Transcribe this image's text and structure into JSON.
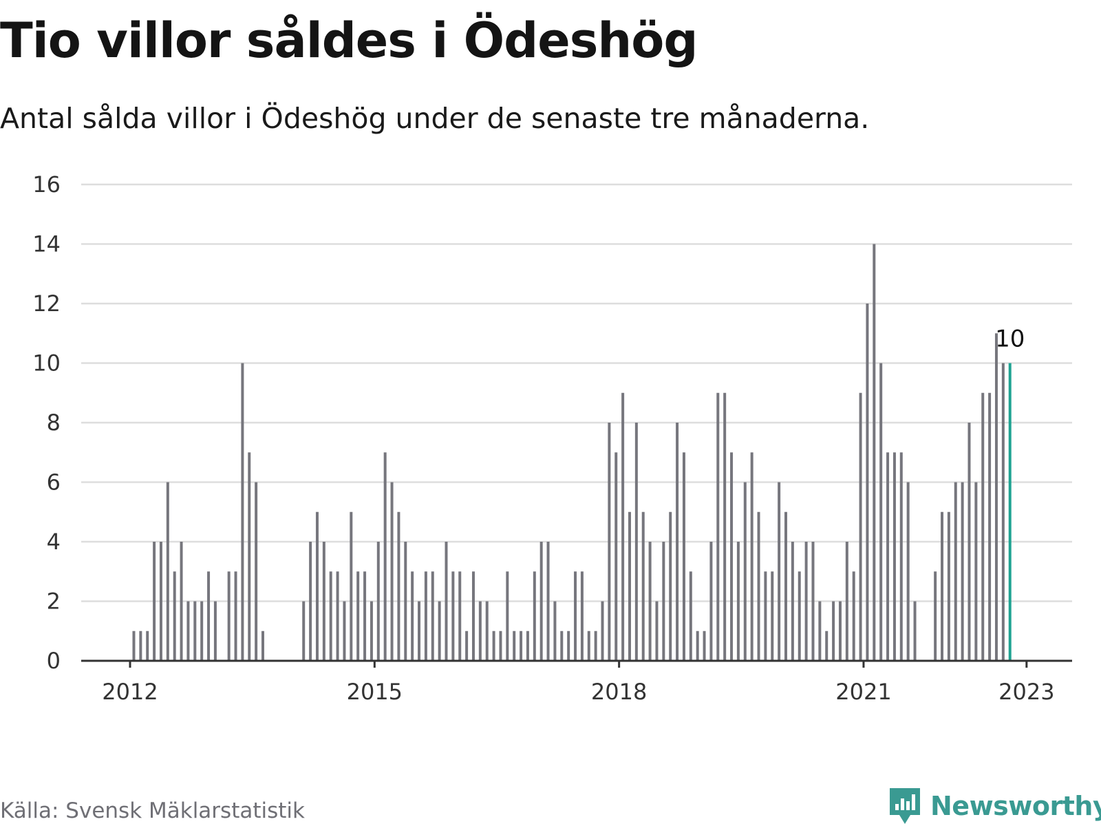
{
  "title": "Tio villor såldes i Ödeshög",
  "subtitle": "Antal sålda villor i Ödeshög under de senaste tre månaderna.",
  "source": "Källa: Svensk Mäklarstatistik",
  "brand": "Newsworthy",
  "colors": {
    "bar": "#76767d",
    "highlight": "#1fa392",
    "grid": "#dddddd",
    "axis": "#333333",
    "brand": "#3a9a92"
  },
  "chart_data": {
    "type": "bar",
    "title": "Tio villor såldes i Ödeshög",
    "subtitle": "Antal sålda villor i Ödeshög under de senaste tre månaderna.",
    "xlabel": "",
    "ylabel": "",
    "ylim": [
      0,
      16
    ],
    "yticks": [
      0,
      2,
      4,
      6,
      8,
      10,
      12,
      14,
      16
    ],
    "grid": true,
    "start_month": "2012-01",
    "xticks": [
      "2012",
      "2015",
      "2018",
      "2021",
      "2023"
    ],
    "values": [
      0,
      0,
      0,
      0,
      1,
      1,
      1,
      4,
      4,
      6,
      3,
      4,
      2,
      2,
      2,
      3,
      2,
      0,
      3,
      3,
      10,
      7,
      6,
      1,
      0,
      0,
      0,
      0,
      0,
      2,
      4,
      5,
      4,
      3,
      3,
      2,
      5,
      3,
      3,
      2,
      4,
      7,
      6,
      5,
      4,
      3,
      2,
      3,
      3,
      2,
      4,
      3,
      3,
      1,
      3,
      2,
      2,
      1,
      1,
      3,
      1,
      1,
      1,
      3,
      4,
      4,
      2,
      1,
      1,
      3,
      3,
      1,
      1,
      2,
      8,
      7,
      9,
      5,
      8,
      5,
      4,
      2,
      4,
      5,
      8,
      7,
      3,
      1,
      1,
      4,
      9,
      9,
      7,
      4,
      6,
      7,
      5,
      3,
      3,
      6,
      5,
      4,
      3,
      4,
      4,
      2,
      1,
      2,
      2,
      4,
      3,
      9,
      12,
      14,
      10,
      7,
      7,
      7,
      6,
      2,
      0,
      0,
      3,
      5,
      5,
      6,
      6,
      8,
      6,
      9,
      9,
      11,
      10,
      10
    ],
    "highlight_label": "10"
  }
}
